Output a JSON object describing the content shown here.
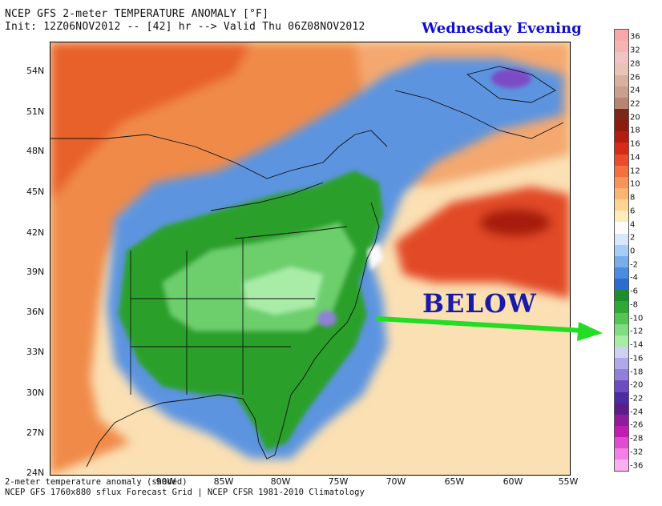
{
  "header": {
    "title_line1": "NCEP GFS 2-meter TEMPERATURE ANOMALY [°F]",
    "title_line2": "Init: 12Z06NOV2012 -- [42] hr --> Valid Thu 06Z08NOV2012",
    "overlay_title": "Wednesday Evening"
  },
  "annotation": {
    "label": "BELOW",
    "arrow_color": "#22dd22"
  },
  "map": {
    "lat_labels": [
      "54N",
      "51N",
      "48N",
      "45N",
      "42N",
      "39N",
      "36N",
      "33N",
      "30N",
      "27N",
      "24N"
    ],
    "lon_labels": [
      "90W",
      "85W",
      "80W",
      "75W",
      "70W",
      "65W",
      "60W",
      "55W"
    ],
    "colors": {
      "ocean_warm": "#fbe0b4",
      "warm_orange": "#f07a3c",
      "warm_red": "#d43418",
      "dark_red": "#a81a0c",
      "neutral": "#fcfcfc",
      "cool_light_blue": "#c8e0f8",
      "cool_blue": "#5c94e0",
      "green_dark": "#2aa02a",
      "green_light": "#8ce88c",
      "purple": "#7c4cc4"
    }
  },
  "colorbar": {
    "values": [
      "36",
      "32",
      "28",
      "26",
      "24",
      "22",
      "20",
      "18",
      "16",
      "14",
      "12",
      "10",
      "8",
      "6",
      "4",
      "2",
      "0",
      "-2",
      "-4",
      "-6",
      "-8",
      "-10",
      "-12",
      "-14",
      "-16",
      "-18",
      "-20",
      "-22",
      "-24",
      "-26",
      "-28",
      "-32",
      "-36"
    ],
    "colors": [
      "#f8a8a8",
      "#f4b4b4",
      "#f0c4c4",
      "#e8c4b8",
      "#d8b0a0",
      "#c8a090",
      "#b88474",
      "#7c2818",
      "#8c1c10",
      "#b41c10",
      "#d42c18",
      "#e84c2c",
      "#f47040",
      "#f89458",
      "#fcb474",
      "#fcd494",
      "#fcecbc",
      "#fcfcfc",
      "#d8e8fc",
      "#a8ccf4",
      "#78acec",
      "#4c8ce0",
      "#2c6cd0",
      "#1c8c2c",
      "#30a834",
      "#54c454",
      "#80dc80",
      "#a8eca8",
      "#d0d0f4",
      "#b0a8e8",
      "#9080d8",
      "#6c4cc0",
      "#4c2ca4",
      "#5c1c8c",
      "#901c9c",
      "#c01cb0",
      "#e04cd0",
      "#f480e4",
      "#fcb0f0"
    ]
  },
  "footer": {
    "line1": "2-meter temperature anomaly (shaded)",
    "line2": "NCEP GFS 1760x880 sflux Forecast Grid | NCEP CFSR 1981-2010 Climatology"
  }
}
